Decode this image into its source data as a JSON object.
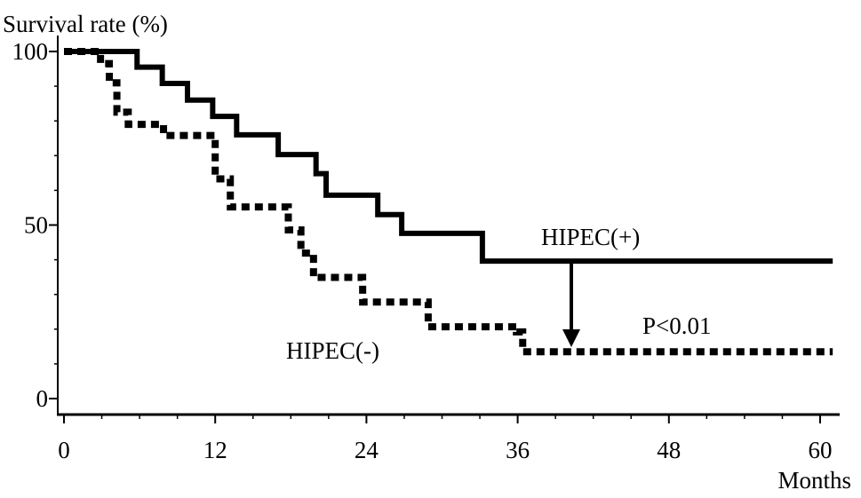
{
  "chart_data": {
    "type": "line",
    "title": "",
    "ylabel": "Survival rate (%)",
    "xlabel": "Months",
    "xlim": [
      0,
      62
    ],
    "ylim": [
      0,
      100
    ],
    "x_ticks": [
      0,
      12,
      24,
      36,
      48,
      60
    ],
    "y_ticks": [
      0,
      50,
      100
    ],
    "grid": false,
    "legend": "none",
    "step": true,
    "series": [
      {
        "name": "HIPEC(+)",
        "line_style": "solid",
        "color": "#000000",
        "x": [
          0,
          5.8,
          7.8,
          9.8,
          11.8,
          13.7,
          17,
          20,
          20.8,
          24.9,
          26.8,
          33.2,
          61
        ],
        "y": [
          100,
          95.5,
          90.8,
          86,
          81.3,
          76,
          70.3,
          64.8,
          58.6,
          53,
          47.6,
          39.6,
          39.6
        ]
      },
      {
        "name": "HIPEC(-)",
        "line_style": "dotted",
        "color": "#000000",
        "x": [
          0,
          2.9,
          3.6,
          4.2,
          5.1,
          7.9,
          12,
          13.2,
          17.8,
          18.8,
          19.8,
          23.7,
          28.9,
          35.9,
          36.4,
          61
        ],
        "y": [
          100,
          96.5,
          91,
          82.5,
          79,
          75.8,
          63.3,
          55.2,
          48.6,
          41.9,
          34.9,
          27.8,
          20.7,
          19.2,
          13.5,
          13.5
        ]
      }
    ],
    "annotations": [
      {
        "text": "P<0.01"
      }
    ],
    "series_labels": [
      "HIPEC(+)",
      "HIPEC(-)"
    ]
  }
}
